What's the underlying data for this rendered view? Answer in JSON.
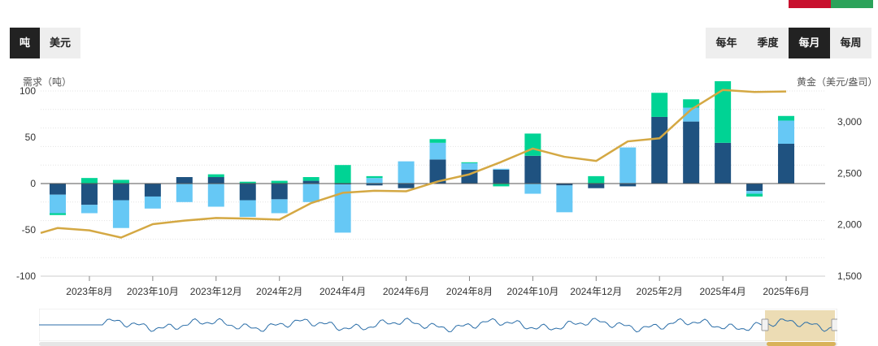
{
  "header": {
    "flag_colors": [
      "#c8102e",
      "#2ca35a"
    ],
    "unit_buttons": [
      {
        "label": "吨",
        "active": true
      },
      {
        "label": "美元",
        "active": false
      }
    ],
    "period_buttons": [
      {
        "label": "每年",
        "active": false
      },
      {
        "label": "季度",
        "active": false
      },
      {
        "label": "每月",
        "active": true
      },
      {
        "label": "每周",
        "active": false
      }
    ]
  },
  "chart_data": {
    "type": "bar",
    "stacked": true,
    "left_axis_title": "需求（吨）",
    "right_axis_title": "黄金（美元/盎司）",
    "ylim": [
      -100,
      100
    ],
    "yticks": [
      -100,
      -50,
      0,
      50,
      100
    ],
    "y2lim": [
      1500,
      3300
    ],
    "y2ticks": [
      1500,
      2000,
      2500,
      3000
    ],
    "y2tick_labels": [
      "1,500",
      "2,000",
      "2,500",
      "3,000"
    ],
    "grid": true,
    "months": [
      "2023-06",
      "2023-07",
      "2023-08",
      "2023-09",
      "2023-10",
      "2023-11",
      "2023-12",
      "2024-01",
      "2024-02",
      "2024-03",
      "2024-04",
      "2024-05",
      "2024-06",
      "2024-07",
      "2024-08",
      "2024-09",
      "2024-10",
      "2024-11",
      "2024-12",
      "2025-01",
      "2025-02",
      "2025-03",
      "2025-04",
      "2025-05",
      "2025-06"
    ],
    "x_tick_labels": [
      {
        "index": 2,
        "label": "2023年8月"
      },
      {
        "index": 4,
        "label": "2023年10月"
      },
      {
        "index": 6,
        "label": "2023年12月"
      },
      {
        "index": 8,
        "label": "2024年2月"
      },
      {
        "index": 10,
        "label": "2024年4月"
      },
      {
        "index": 12,
        "label": "2024年6月"
      },
      {
        "index": 14,
        "label": "2024年8月"
      },
      {
        "index": 16,
        "label": "2024年10月"
      },
      {
        "index": 18,
        "label": "2024年12月"
      },
      {
        "index": 20,
        "label": "2025年2月"
      },
      {
        "index": 22,
        "label": "2025年4月"
      },
      {
        "index": 24,
        "label": "2025年6月"
      }
    ],
    "series": [
      {
        "color": "#1f5280",
        "values": [
          null,
          -12,
          -23,
          -18,
          -14,
          7,
          7,
          -18,
          -17,
          3,
          -1,
          -2,
          -5,
          26,
          15,
          15,
          30,
          -2,
          -5,
          -3,
          72,
          67,
          44,
          -8,
          43
        ]
      },
      {
        "color": "#66c8f5",
        "values": [
          null,
          -20,
          -9,
          -30,
          -13,
          -20,
          -25,
          -18,
          -15,
          -20,
          -52,
          6,
          24,
          18,
          7,
          1,
          -11,
          -29,
          0,
          39,
          0,
          15,
          0,
          -3,
          25
        ]
      },
      {
        "color": "#00d394",
        "values": [
          null,
          -2,
          6,
          4,
          0,
          0,
          3,
          2,
          3,
          4,
          20,
          2,
          0,
          4,
          1,
          -3,
          24,
          0,
          8,
          0,
          26,
          9,
          71,
          -3,
          5
        ]
      }
    ],
    "gold_line": [
      1920,
      1968,
      1945,
      1875,
      2005,
      2040,
      2065,
      2060,
      2050,
      2210,
      2310,
      2330,
      2325,
      2420,
      2490,
      2610,
      2740,
      2660,
      2620,
      2810,
      2840,
      3120,
      3310,
      3290,
      3295
    ],
    "gold_line_color": "#d4a843"
  },
  "navigator": {
    "window_color": "#ecdcb4",
    "line_color": "#2b6ea8"
  }
}
